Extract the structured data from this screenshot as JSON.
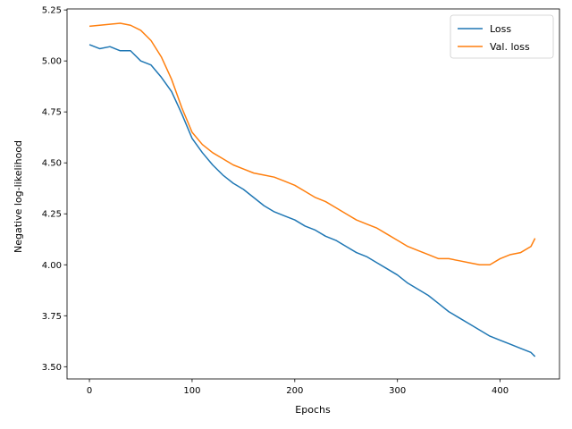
{
  "chart_data": {
    "type": "line",
    "title": "",
    "xlabel": "Epochs",
    "ylabel": "Negative log-likelihood",
    "xlim": [
      -21.8,
      457.8
    ],
    "ylim": [
      3.44,
      5.255
    ],
    "xticks": [
      0,
      100,
      200,
      300,
      400
    ],
    "yticks": [
      3.5,
      3.75,
      4.0,
      4.25,
      4.5,
      4.75,
      5.0,
      5.25
    ],
    "ytick_labels": [
      "3.50",
      "3.75",
      "4.00",
      "4.25",
      "4.50",
      "4.75",
      "5.00",
      "5.25"
    ],
    "grid": false,
    "legend_position": "top-right",
    "series": [
      {
        "name": "Loss",
        "color": "#1f77b4",
        "x": [
          0,
          10,
          20,
          30,
          40,
          50,
          60,
          70,
          80,
          90,
          100,
          110,
          120,
          130,
          140,
          150,
          160,
          170,
          180,
          190,
          200,
          210,
          220,
          230,
          240,
          250,
          260,
          270,
          280,
          290,
          300,
          310,
          320,
          330,
          340,
          350,
          360,
          370,
          380,
          390,
          400,
          410,
          420,
          430,
          434
        ],
        "y": [
          5.08,
          5.06,
          5.07,
          5.05,
          5.05,
          5.0,
          4.98,
          4.92,
          4.85,
          4.74,
          4.62,
          4.55,
          4.49,
          4.44,
          4.4,
          4.37,
          4.33,
          4.29,
          4.26,
          4.24,
          4.22,
          4.19,
          4.17,
          4.14,
          4.12,
          4.09,
          4.06,
          4.04,
          4.01,
          3.98,
          3.95,
          3.91,
          3.88,
          3.85,
          3.81,
          3.77,
          3.74,
          3.71,
          3.68,
          3.65,
          3.63,
          3.61,
          3.59,
          3.57,
          3.55
        ]
      },
      {
        "name": "Val. loss",
        "color": "#ff7f0e",
        "x": [
          0,
          10,
          20,
          30,
          40,
          50,
          60,
          70,
          80,
          90,
          100,
          110,
          120,
          130,
          140,
          150,
          160,
          170,
          180,
          190,
          200,
          210,
          220,
          230,
          240,
          250,
          260,
          270,
          280,
          290,
          300,
          310,
          320,
          330,
          340,
          350,
          360,
          370,
          380,
          390,
          400,
          410,
          420,
          430,
          434
        ],
        "y": [
          5.17,
          5.175,
          5.18,
          5.185,
          5.175,
          5.15,
          5.1,
          5.02,
          4.91,
          4.77,
          4.65,
          4.59,
          4.55,
          4.52,
          4.49,
          4.47,
          4.45,
          4.44,
          4.43,
          4.41,
          4.39,
          4.36,
          4.33,
          4.31,
          4.28,
          4.25,
          4.22,
          4.2,
          4.18,
          4.15,
          4.12,
          4.09,
          4.07,
          4.05,
          4.03,
          4.03,
          4.02,
          4.01,
          4.0,
          4.0,
          4.03,
          4.05,
          4.06,
          4.09,
          4.13
        ]
      }
    ]
  }
}
